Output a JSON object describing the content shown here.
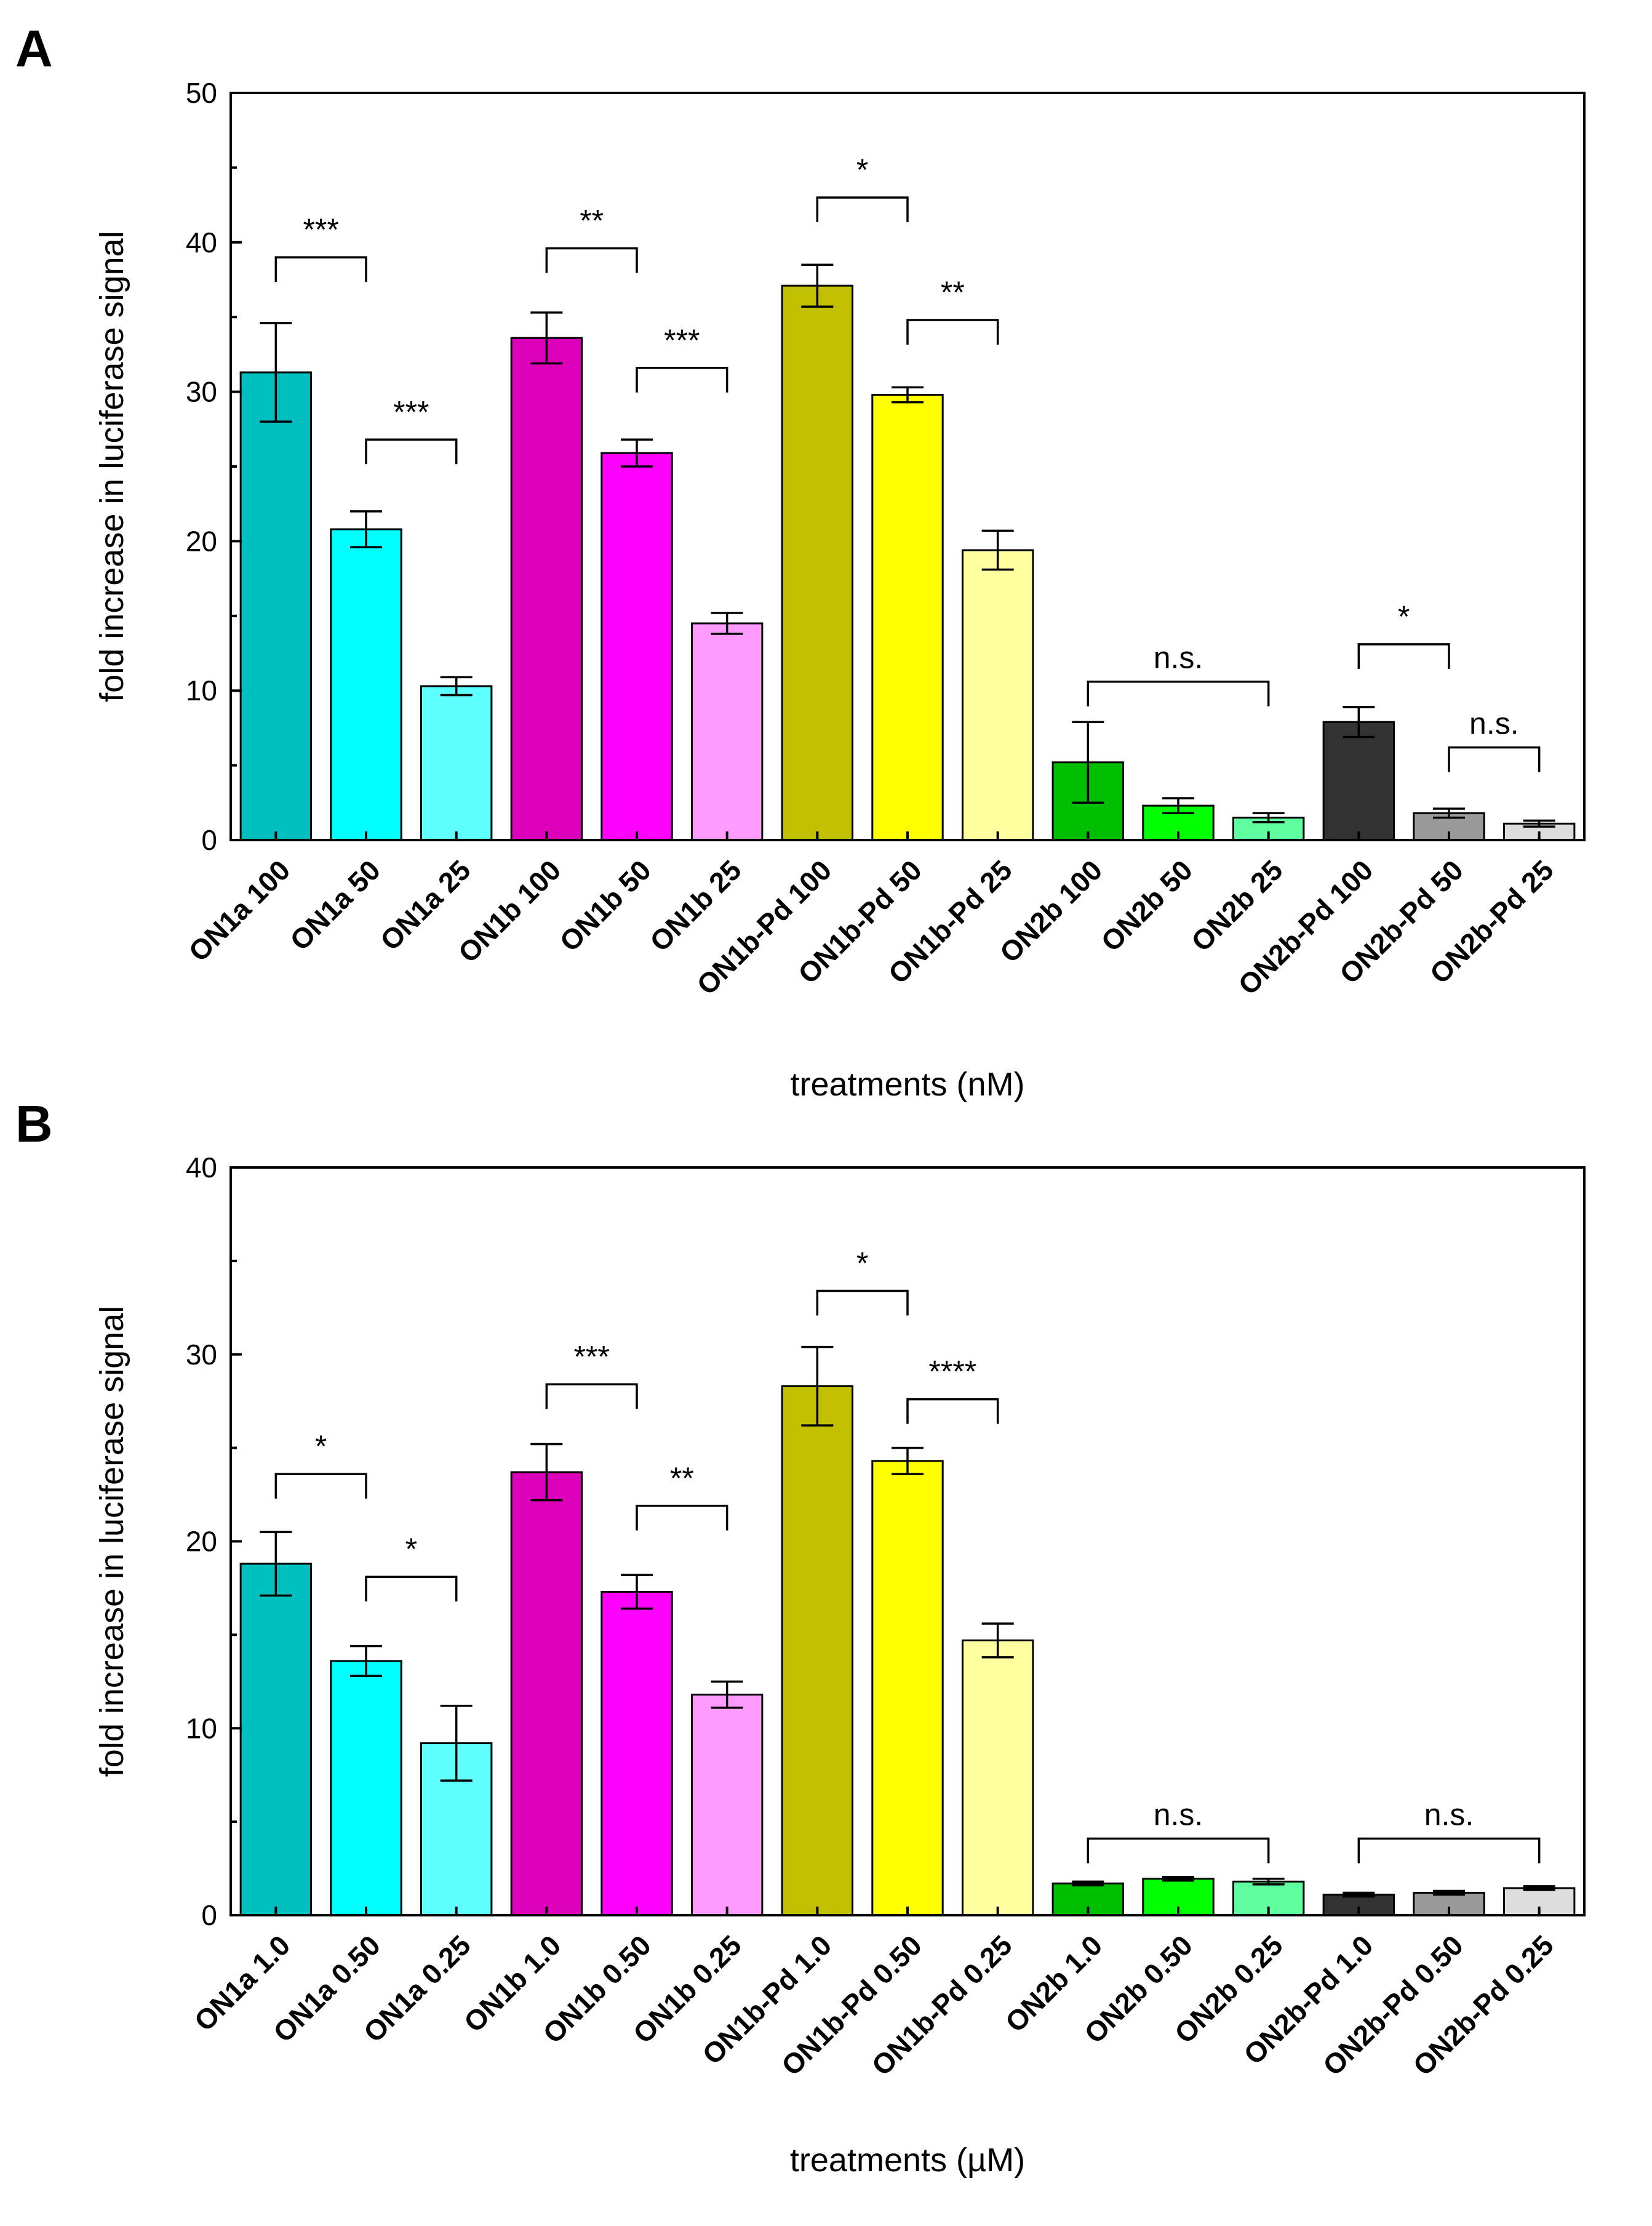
{
  "chart_data": [
    {
      "type": "bar",
      "panel_label": "A",
      "xlabel": "treatments (nM)",
      "ylabel": "fold increase in luciferase signal",
      "ylim": [
        0,
        50
      ],
      "yticks": [
        "0",
        "10",
        "20",
        "30",
        "40",
        "50"
      ],
      "yticks_values": [
        0,
        10,
        20,
        30,
        40,
        50
      ],
      "categories": [
        "ON1a 100",
        "ON1a 50",
        "ON1a 25",
        "ON1b 100",
        "ON1b 50",
        "ON1b 25",
        "ON1b-Pd 100",
        "ON1b-Pd 50",
        "ON1b-Pd 25",
        "ON2b 100",
        "ON2b 50",
        "ON2b 25",
        "ON2b-Pd 100",
        "ON2b-Pd 50",
        "ON2b-Pd 25"
      ],
      "values": [
        31.3,
        20.8,
        10.3,
        33.6,
        25.9,
        14.5,
        37.1,
        29.8,
        19.4,
        5.2,
        2.3,
        1.5,
        7.9,
        1.8,
        1.1
      ],
      "errors": [
        3.3,
        1.2,
        0.6,
        1.7,
        0.9,
        0.7,
        1.4,
        0.5,
        1.3,
        2.7,
        0.5,
        0.3,
        1.0,
        0.3,
        0.2
      ],
      "colors": [
        "#00bfbf",
        "#00ffff",
        "#5fffff",
        "#dd00bb",
        "#ff00ff",
        "#ff9bff",
        "#c0bf00",
        "#ffff00",
        "#ffff9f",
        "#00bf00",
        "#00ff00",
        "#5fff9f",
        "#333333",
        "#999999",
        "#dddddd"
      ],
      "significance": [
        {
          "from": 0,
          "to": 1,
          "label": "***",
          "y": 39.0
        },
        {
          "from": 1,
          "to": 2,
          "label": "***",
          "y": 26.8
        },
        {
          "from": 3,
          "to": 4,
          "label": "**",
          "y": 39.6
        },
        {
          "from": 4,
          "to": 5,
          "label": "***",
          "y": 31.6
        },
        {
          "from": 6,
          "to": 7,
          "label": "*",
          "y": 43.0
        },
        {
          "from": 7,
          "to": 8,
          "label": "**",
          "y": 34.8
        },
        {
          "from": 9,
          "to": 11,
          "label": "n.s.",
          "y": 10.6
        },
        {
          "from": 12,
          "to": 13,
          "label": "*",
          "y": 13.1
        },
        {
          "from": 13,
          "to": 14,
          "label": "n.s.",
          "y": 6.2
        }
      ]
    },
    {
      "type": "bar",
      "panel_label": "B",
      "xlabel": "treatments (µM)",
      "ylabel": "fold increase in luciferase signal",
      "ylim": [
        0,
        40
      ],
      "yticks": [
        "0",
        "10",
        "20",
        "30",
        "40"
      ],
      "yticks_values": [
        0,
        10,
        20,
        30,
        40
      ],
      "categories": [
        "ON1a 1.0",
        "ON1a 0.50",
        "ON1a 0.25",
        "ON1b 1.0",
        "ON1b 0.50",
        "ON1b 0.25",
        "ON1b-Pd 1.0",
        "ON1b-Pd 0.50",
        "ON1b-Pd 0.25",
        "ON2b 1.0",
        "ON2b 0.50",
        "ON2b 0.25",
        "ON2b-Pd 1.0",
        "ON2b-Pd 0.50",
        "ON2b-Pd 0.25"
      ],
      "values": [
        18.8,
        13.6,
        9.2,
        23.7,
        17.3,
        11.8,
        28.3,
        24.3,
        14.7,
        1.7,
        1.95,
        1.8,
        1.1,
        1.2,
        1.45
      ],
      "errors": [
        1.7,
        0.8,
        2.0,
        1.5,
        0.9,
        0.7,
        2.1,
        0.7,
        0.9,
        0.1,
        0.1,
        0.15,
        0.1,
        0.1,
        0.1
      ],
      "colors": [
        "#00bfbf",
        "#00ffff",
        "#5fffff",
        "#dd00bb",
        "#ff00ff",
        "#ff9bff",
        "#c0bf00",
        "#ffff00",
        "#ffff9f",
        "#00bf00",
        "#00ff00",
        "#5fff9f",
        "#333333",
        "#999999",
        "#dddddd"
      ],
      "significance": [
        {
          "from": 0,
          "to": 1,
          "label": "*",
          "y": 23.6
        },
        {
          "from": 1,
          "to": 2,
          "label": "*",
          "y": 18.1
        },
        {
          "from": 3,
          "to": 4,
          "label": "***",
          "y": 28.4
        },
        {
          "from": 4,
          "to": 5,
          "label": "**",
          "y": 21.9
        },
        {
          "from": 6,
          "to": 7,
          "label": "*",
          "y": 33.4
        },
        {
          "from": 7,
          "to": 8,
          "label": "****",
          "y": 27.6
        },
        {
          "from": 9,
          "to": 11,
          "label": "n.s.",
          "y": 4.1
        },
        {
          "from": 12,
          "to": 14,
          "label": "n.s.",
          "y": 4.1
        }
      ]
    }
  ]
}
